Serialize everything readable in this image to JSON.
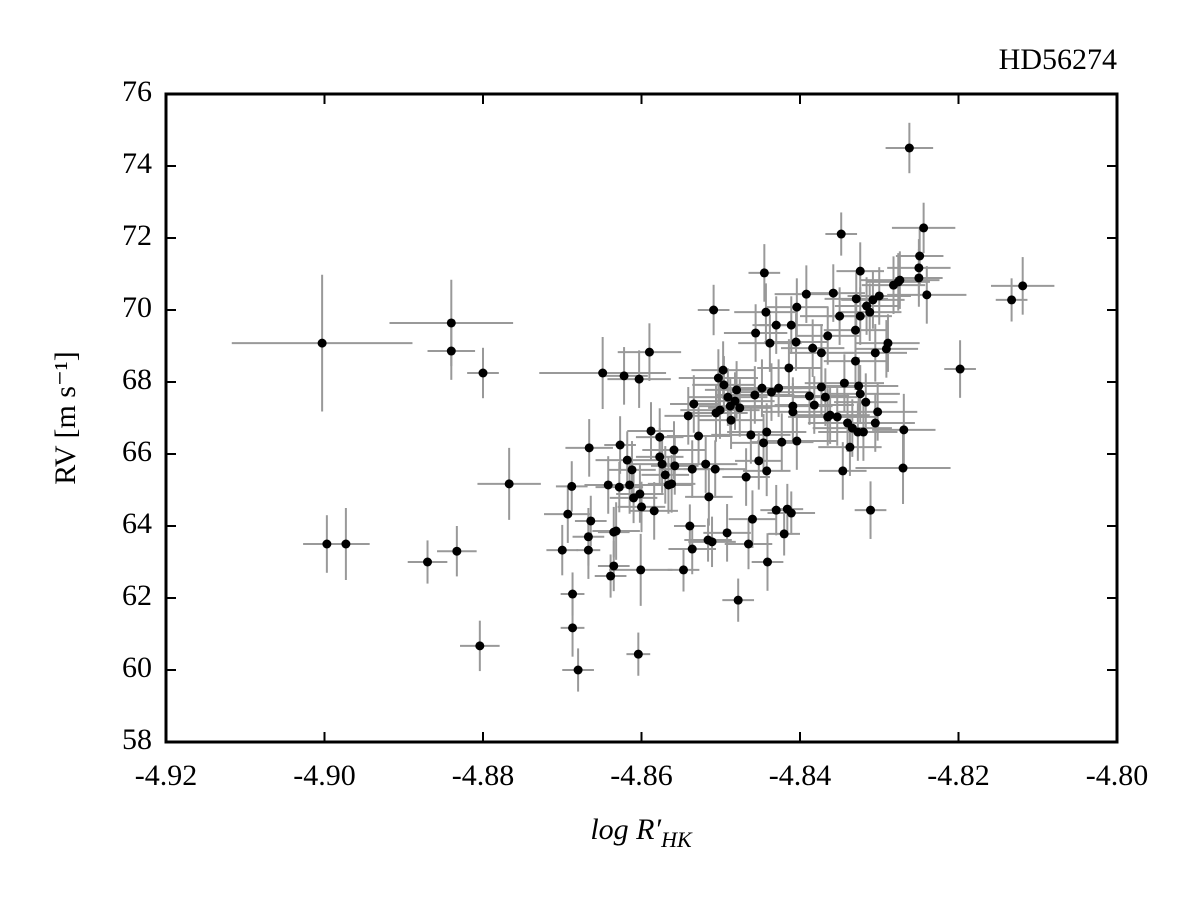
{
  "chart_data": {
    "type": "scatter",
    "title": "HD56274",
    "xlabel": {
      "main": "log R′",
      "sub": "HK"
    },
    "ylabel": "RV [m s⁻¹]",
    "xlim": [
      -4.92,
      -4.8
    ],
    "xticks": [
      -4.92,
      {
        "value": -4.9,
        "label": "-4.90"
      },
      -4.88,
      -4.86,
      -4.84,
      -4.82,
      {
        "value": -4.8,
        "label": "-4.80"
      }
    ],
    "ylim": [
      58,
      76
    ],
    "yticks": [
      58,
      60,
      62,
      64,
      66,
      68,
      70,
      72,
      74,
      76
    ],
    "color": "#000000",
    "errorcolor": "#999999",
    "x": [
      -4.9003,
      -4.8997,
      -4.8973,
      -4.887,
      -4.8833,
      -4.884,
      -4.884,
      -4.88,
      -4.8804,
      -4.8767,
      -4.868,
      -4.8687,
      -4.8687,
      -4.87,
      -4.8693,
      -4.8688,
      -4.8667,
      -4.8667,
      -4.8664,
      -4.8666,
      -4.8649,
      -4.8642,
      -4.8639,
      -4.8635,
      -4.8635,
      -4.8632,
      -4.8628,
      -4.8627,
      -4.8622,
      -4.8618,
      -4.8615,
      -4.8612,
      -4.861,
      -4.8604,
      -4.8603,
      -4.8602,
      -4.8601,
      -4.86,
      -4.859,
      -4.8588,
      -4.8584,
      -4.8577,
      -4.8577,
      -4.8574,
      -4.857,
      -4.8566,
      -4.8562,
      -4.8559,
      -4.8558,
      -4.8547,
      -4.8541,
      -4.8539,
      -4.8536,
      -4.8536,
      -4.8534,
      -4.8528,
      -4.8519,
      -4.8516,
      -4.8515,
      -4.8511,
      -4.8509,
      -4.8507,
      -4.8506,
      -4.8503,
      -4.8501,
      -4.8497,
      -4.8496,
      -4.8492,
      -4.8491,
      -4.8488,
      -4.8487,
      -4.8482,
      -4.848,
      -4.8478,
      -4.8476,
      -4.8468,
      -4.8465,
      -4.8462,
      -4.846,
      -4.8457,
      -4.8456,
      -4.8452,
      -4.8448,
      -4.8446,
      -4.8445,
      -4.8443,
      -4.8442,
      -4.8442,
      -4.8441,
      -4.8438,
      -4.8436,
      -4.843,
      -4.843,
      -4.8427,
      -4.8423,
      -4.842,
      -4.8416,
      -4.8414,
      -4.8411,
      -4.8411,
      -4.8409,
      -4.8409,
      -4.8405,
      -4.8404,
      -4.8404,
      -4.8392,
      -4.8388,
      -4.8384,
      -4.8382,
      -4.8373,
      -4.8373,
      -4.8368,
      -4.8365,
      -4.8365,
      -4.8362,
      -4.8358,
      -4.8353,
      -4.835,
      -4.8348,
      -4.8346,
      -4.8344,
      -4.834,
      -4.8337,
      -4.8334,
      -4.833,
      -4.833,
      -4.8329,
      -4.8327,
      -4.8326,
      -4.8324,
      -4.8324,
      -4.8324,
      -4.832,
      -4.8317,
      -4.8316,
      -4.8312,
      -4.8311,
      -4.8308,
      -4.8305,
      -4.8305,
      -4.8302,
      -4.83,
      -4.8291,
      -4.8289,
      -4.8282,
      -4.8276,
      -4.8274,
      -4.827,
      -4.8269,
      -4.8262,
      -4.825,
      -4.825,
      -4.8249,
      -4.8244,
      -4.824,
      -4.8198,
      -4.8133,
      -4.8119
    ],
    "values": [
      69.08,
      63.5,
      63.5,
      63.0,
      63.3,
      69.64,
      68.86,
      68.25,
      60.67,
      65.17,
      60.0,
      61.17,
      62.11,
      63.33,
      64.33,
      65.1,
      63.7,
      63.33,
      64.14,
      66.17,
      68.25,
      65.14,
      62.61,
      62.89,
      63.83,
      63.86,
      65.08,
      66.25,
      68.17,
      65.83,
      65.14,
      65.56,
      64.78,
      60.44,
      68.08,
      64.89,
      62.78,
      64.53,
      68.83,
      66.64,
      64.42,
      65.92,
      66.47,
      65.72,
      65.42,
      65.14,
      65.17,
      66.11,
      65.67,
      62.78,
      67.06,
      64.0,
      63.36,
      65.58,
      67.39,
      66.5,
      65.72,
      63.61,
      64.81,
      63.56,
      70.0,
      65.58,
      67.14,
      68.11,
      67.22,
      68.33,
      67.92,
      63.81,
      67.58,
      67.33,
      66.94,
      67.47,
      67.78,
      61.94,
      67.28,
      65.36,
      63.5,
      66.53,
      64.19,
      67.64,
      69.36,
      65.81,
      67.83,
      66.31,
      71.03,
      69.94,
      65.53,
      66.61,
      63.0,
      69.08,
      67.72,
      69.58,
      64.44,
      67.83,
      66.33,
      63.78,
      64.47,
      68.39,
      64.36,
      69.58,
      67.33,
      67.17,
      69.11,
      66.36,
      70.08,
      70.44,
      67.61,
      68.94,
      67.36,
      68.81,
      67.86,
      67.58,
      67.03,
      69.28,
      67.08,
      70.47,
      67.03,
      69.83,
      72.11,
      65.53,
      67.97,
      66.86,
      66.19,
      66.72,
      69.44,
      68.58,
      70.31,
      66.61,
      67.89,
      71.08,
      69.83,
      67.67,
      66.61,
      67.44,
      70.11,
      69.94,
      64.44,
      70.28,
      68.81,
      66.86,
      67.17,
      70.39,
      68.92,
      69.08,
      70.69,
      70.78,
      70.83,
      65.61,
      66.67,
      74.5,
      70.89,
      71.17,
      71.5,
      72.28,
      70.42,
      68.36,
      70.28,
      70.67
    ],
    "xerr": [
      0.0114,
      0.003,
      0.003,
      0.0025,
      0.0025,
      0.0078,
      0.003,
      0.002,
      0.0025,
      0.004,
      0.002,
      0.0015,
      0.0015,
      0.002,
      0.003,
      0.002,
      0.002,
      0.0015,
      0.002,
      0.003,
      0.008,
      0.003,
      0.002,
      0.002,
      0.002,
      0.003,
      0.003,
      0.002,
      0.003,
      0.004,
      0.003,
      0.003,
      0.003,
      0.0015,
      0.004,
      0.003,
      0.004,
      0.003,
      0.004,
      0.003,
      0.003,
      0.003,
      0.003,
      0.004,
      0.003,
      0.003,
      0.003,
      0.004,
      0.003,
      0.002,
      0.003,
      0.002,
      0.003,
      0.004,
      0.003,
      0.004,
      0.004,
      0.003,
      0.003,
      0.003,
      0.002,
      0.004,
      0.004,
      0.005,
      0.005,
      0.004,
      0.004,
      0.003,
      0.005,
      0.004,
      0.004,
      0.005,
      0.004,
      0.002,
      0.004,
      0.003,
      0.003,
      0.005,
      0.003,
      0.005,
      0.004,
      0.003,
      0.005,
      0.004,
      0.002,
      0.004,
      0.003,
      0.005,
      0.002,
      0.004,
      0.005,
      0.003,
      0.002,
      0.005,
      0.004,
      0.002,
      0.002,
      0.004,
      0.003,
      0.004,
      0.005,
      0.004,
      0.004,
      0.005,
      0.004,
      0.004,
      0.005,
      0.004,
      0.005,
      0.004,
      0.005,
      0.004,
      0.005,
      0.004,
      0.005,
      0.004,
      0.005,
      0.005,
      0.002,
      0.003,
      0.005,
      0.005,
      0.004,
      0.005,
      0.004,
      0.004,
      0.004,
      0.005,
      0.005,
      0.003,
      0.004,
      0.005,
      0.004,
      0.004,
      0.004,
      0.004,
      0.002,
      0.004,
      0.004,
      0.005,
      0.005,
      0.004,
      0.004,
      0.004,
      0.004,
      0.004,
      0.005,
      0.006,
      0.004,
      0.003,
      0.003,
      0.004,
      0.003,
      0.004,
      0.005,
      0.002,
      0.002,
      0.004
    ],
    "yerr": [
      1.9,
      0.8,
      1.0,
      0.6,
      0.7,
      1.2,
      0.8,
      0.7,
      0.7,
      1.0,
      0.6,
      0.8,
      0.6,
      0.7,
      0.8,
      0.7,
      0.8,
      0.8,
      0.7,
      0.8,
      1.0,
      0.8,
      0.6,
      0.7,
      0.7,
      0.8,
      0.7,
      0.8,
      0.8,
      0.8,
      0.8,
      0.8,
      0.7,
      0.6,
      0.8,
      0.8,
      1.0,
      0.7,
      0.8,
      0.8,
      0.8,
      0.8,
      0.8,
      0.8,
      0.8,
      0.8,
      0.8,
      0.8,
      0.8,
      0.6,
      0.8,
      0.6,
      0.7,
      0.8,
      0.8,
      0.8,
      0.8,
      0.6,
      0.8,
      0.7,
      0.7,
      0.8,
      0.8,
      0.8,
      0.8,
      0.8,
      0.8,
      0.8,
      0.8,
      0.8,
      0.8,
      0.8,
      0.8,
      0.6,
      0.8,
      0.8,
      0.7,
      0.8,
      0.8,
      0.8,
      0.8,
      0.8,
      0.8,
      0.8,
      0.8,
      0.8,
      0.7,
      0.8,
      0.8,
      0.8,
      0.8,
      0.8,
      0.7,
      0.8,
      0.8,
      0.6,
      0.7,
      0.8,
      0.6,
      0.8,
      0.8,
      0.8,
      0.8,
      0.8,
      0.8,
      0.8,
      0.8,
      0.8,
      0.8,
      0.8,
      0.8,
      0.8,
      0.8,
      0.8,
      0.8,
      0.8,
      0.8,
      0.8,
      0.6,
      0.8,
      0.8,
      0.8,
      0.8,
      0.8,
      0.8,
      0.8,
      0.8,
      0.8,
      0.8,
      0.8,
      0.8,
      0.8,
      0.8,
      0.8,
      0.8,
      0.8,
      0.8,
      0.8,
      0.8,
      0.8,
      0.8,
      0.8,
      0.8,
      0.8,
      0.8,
      0.8,
      0.8,
      1.0,
      1.0,
      0.7,
      0.8,
      0.8,
      0.8,
      0.7,
      0.8,
      0.8,
      0.6,
      0.8
    ]
  }
}
